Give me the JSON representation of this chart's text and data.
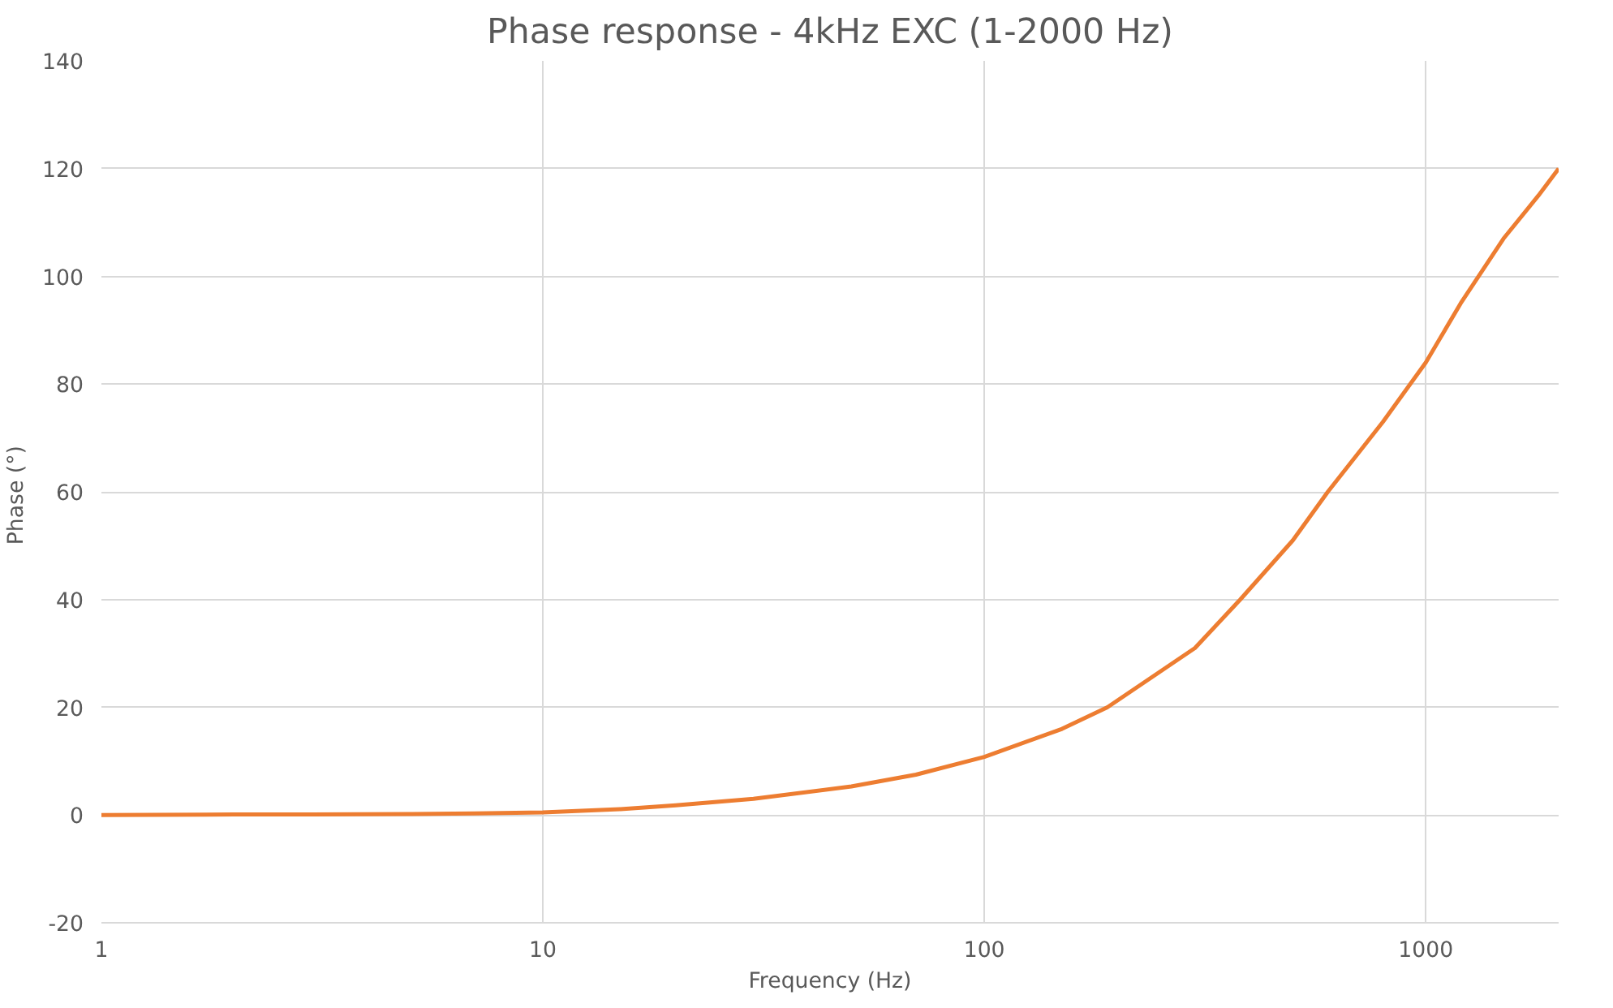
{
  "chart_data": {
    "type": "line",
    "title": "Phase response - 4kHz EXC (1-2000 Hz)",
    "xlabel": "Frequency (Hz)",
    "ylabel": "Phase  (°)",
    "log": "x",
    "x": [
      1,
      2,
      3,
      5,
      7,
      10,
      15,
      20,
      30,
      50,
      70,
      100,
      150,
      190,
      300,
      380,
      500,
      600,
      800,
      1000,
      1200,
      1500,
      1800,
      2000
    ],
    "series": [
      {
        "color": "#ed7d31",
        "values": [
          0,
          0.1,
          0.1,
          0.2,
          0.3,
          0.5,
          1.1,
          1.8,
          3,
          5.3,
          7.5,
          10.8,
          16,
          20,
          31,
          40,
          51,
          60,
          73,
          84,
          95,
          107,
          115,
          120
        ]
      }
    ],
    "xlim": [
      1,
      2000
    ],
    "xticks": [
      1,
      10,
      100,
      1000
    ],
    "ylim": [
      -20,
      140
    ],
    "yticks": [
      -20,
      0,
      20,
      40,
      60,
      80,
      100,
      120,
      140
    ],
    "grid": true,
    "line_style": "solid",
    "marker": "none"
  }
}
